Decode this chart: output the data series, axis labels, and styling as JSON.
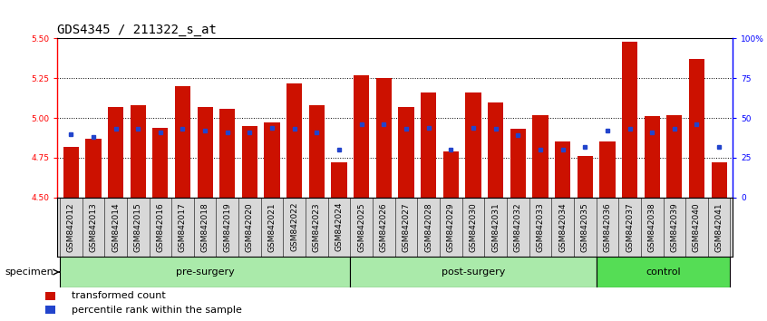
{
  "title": "GDS4345 / 211322_s_at",
  "samples": [
    "GSM842012",
    "GSM842013",
    "GSM842014",
    "GSM842015",
    "GSM842016",
    "GSM842017",
    "GSM842018",
    "GSM842019",
    "GSM842020",
    "GSM842021",
    "GSM842022",
    "GSM842023",
    "GSM842024",
    "GSM842025",
    "GSM842026",
    "GSM842027",
    "GSM842028",
    "GSM842029",
    "GSM842030",
    "GSM842031",
    "GSM842032",
    "GSM842033",
    "GSM842034",
    "GSM842035",
    "GSM842036",
    "GSM842037",
    "GSM842038",
    "GSM842039",
    "GSM842040",
    "GSM842041"
  ],
  "red_values": [
    4.82,
    4.87,
    5.07,
    5.08,
    4.94,
    5.2,
    5.07,
    5.06,
    4.95,
    4.97,
    5.22,
    5.08,
    4.72,
    5.27,
    5.25,
    5.07,
    5.16,
    4.79,
    5.16,
    5.1,
    4.93,
    5.02,
    4.85,
    4.76,
    4.85,
    5.48,
    5.01,
    5.02,
    5.37,
    4.72
  ],
  "blue_pct": [
    40,
    38,
    43,
    43,
    41,
    43,
    42,
    41,
    41,
    44,
    43,
    41,
    30,
    46,
    46,
    43,
    44,
    30,
    44,
    43,
    39,
    30,
    30,
    32,
    42,
    43,
    41,
    43,
    46,
    32
  ],
  "groups": [
    {
      "label": "pre-surgery",
      "start": 0,
      "end": 13,
      "color": "#AAEAAA"
    },
    {
      "label": "post-surgery",
      "start": 13,
      "end": 24,
      "color": "#AAEAAA"
    },
    {
      "label": "control",
      "start": 24,
      "end": 30,
      "color": "#55DD55"
    }
  ],
  "ymin": 4.5,
  "ymax": 5.5,
  "yticks": [
    4.5,
    4.75,
    5.0,
    5.25,
    5.5
  ],
  "right_yticks": [
    0,
    25,
    50,
    75,
    100
  ],
  "right_ytick_labels": [
    "0",
    "25",
    "50",
    "75",
    "100%"
  ],
  "bar_color": "#CC1100",
  "dot_color": "#2244CC",
  "bar_width": 0.7,
  "title_fontsize": 10,
  "tick_fontsize": 6.5,
  "legend_fontsize": 8
}
